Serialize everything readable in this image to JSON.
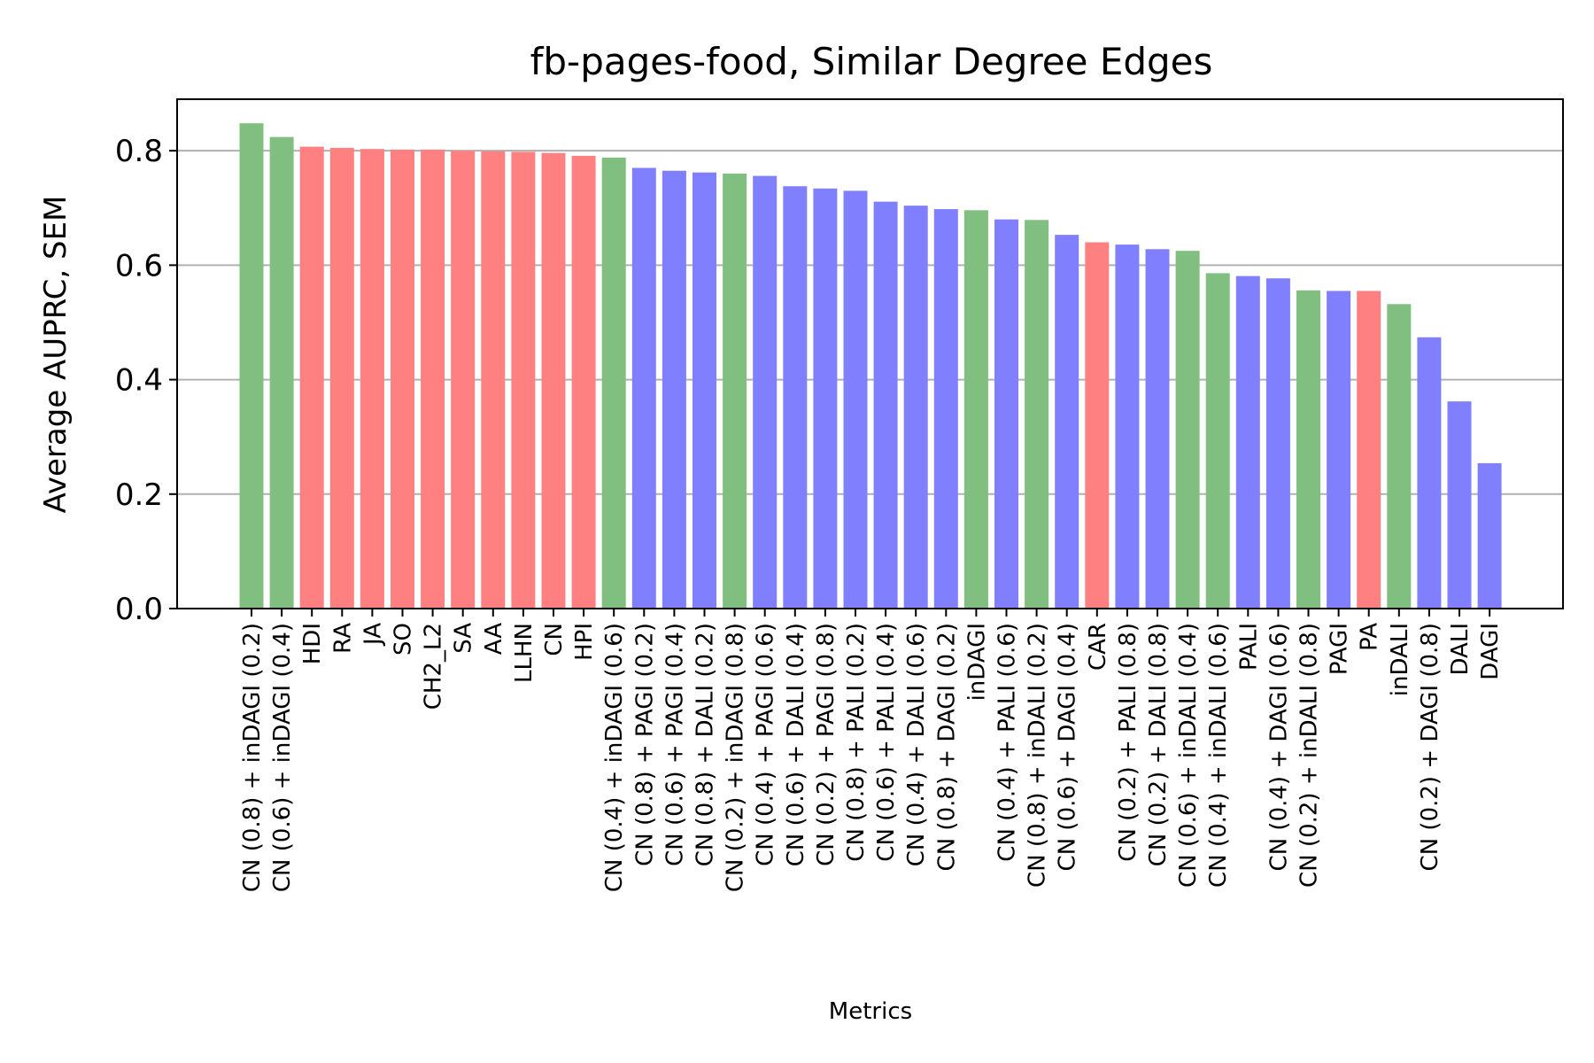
{
  "chart_data": {
    "type": "bar",
    "title": "fb-pages-food, Similar Degree Edges",
    "xlabel": "Metrics",
    "ylabel": "Average AUPRC, SEM",
    "ylim": [
      0,
      0.89
    ],
    "yticks": [
      "0.0",
      "0.2",
      "0.4",
      "0.6",
      "0.8"
    ],
    "grid": "y",
    "colors": {
      "green": "#80bf80",
      "red": "#ff8080",
      "blue": "#8080ff"
    },
    "categories": [
      "CN (0.8) + inDAGI (0.2)",
      "CN (0.6) + inDAGI (0.4)",
      "HDI",
      "RA",
      "JA",
      "SO",
      "CH2_L2",
      "SA",
      "AA",
      "LLHN",
      "CN",
      "HPI",
      "CN (0.4) + inDAGI (0.6)",
      "CN (0.8) + PAGI (0.2)",
      "CN (0.6) + PAGI (0.4)",
      "CN (0.8) + DALI (0.2)",
      "CN (0.2) + inDAGI (0.8)",
      "CN (0.4) + PAGI (0.6)",
      "CN (0.6) + DALI (0.4)",
      "CN (0.2) + PAGI (0.8)",
      "CN (0.8) + PALI (0.2)",
      "CN (0.6) + PALI (0.4)",
      "CN (0.4) + DALI (0.6)",
      "CN (0.8) + DAGI (0.2)",
      "inDAGI",
      "CN (0.4) + PALI (0.6)",
      "CN (0.8) + inDALI (0.2)",
      "CN (0.6) + DAGI (0.4)",
      "CAR",
      "CN (0.2) + PALI (0.8)",
      "CN (0.2) + DALI (0.8)",
      "CN (0.6) + inDALI (0.4)",
      "CN (0.4) + inDALI (0.6)",
      "PALI",
      "CN (0.4) + DAGI (0.6)",
      "CN (0.2) + inDALI (0.8)",
      "PAGI",
      "PA",
      "inDALI",
      "CN (0.2) + DAGI (0.8)",
      "DALI",
      "DAGI"
    ],
    "values": [
      0.848,
      0.824,
      0.807,
      0.805,
      0.803,
      0.802,
      0.802,
      0.8,
      0.799,
      0.798,
      0.796,
      0.791,
      0.788,
      0.77,
      0.765,
      0.762,
      0.76,
      0.756,
      0.738,
      0.734,
      0.73,
      0.711,
      0.704,
      0.698,
      0.696,
      0.68,
      0.679,
      0.653,
      0.64,
      0.636,
      0.628,
      0.625,
      0.586,
      0.581,
      0.577,
      0.556,
      0.555,
      0.555,
      0.532,
      0.474,
      0.362,
      0.254
    ],
    "bar_colors": [
      "green",
      "green",
      "red",
      "red",
      "red",
      "red",
      "red",
      "red",
      "red",
      "red",
      "red",
      "red",
      "green",
      "blue",
      "blue",
      "blue",
      "green",
      "blue",
      "blue",
      "blue",
      "blue",
      "blue",
      "blue",
      "blue",
      "green",
      "blue",
      "green",
      "blue",
      "red",
      "blue",
      "blue",
      "green",
      "green",
      "blue",
      "blue",
      "green",
      "blue",
      "red",
      "green",
      "blue",
      "blue",
      "blue"
    ]
  }
}
